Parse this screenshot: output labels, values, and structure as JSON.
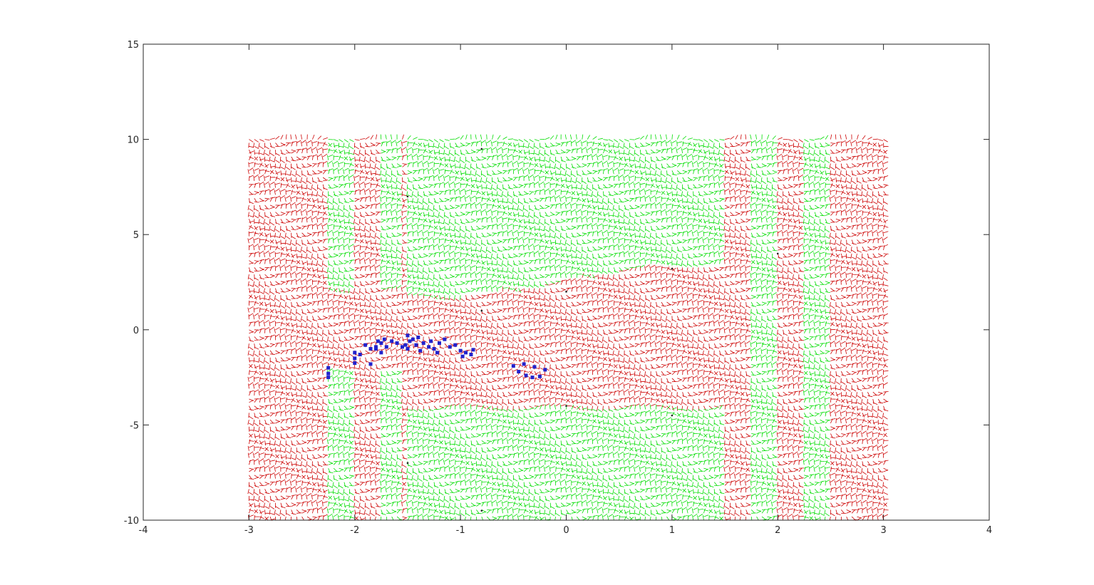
{
  "chart_data": {
    "type": "scatter",
    "title": "",
    "xlabel": "",
    "ylabel": "",
    "xlim": [
      -4,
      4
    ],
    "ylim": [
      -10,
      15
    ],
    "xticks": [
      "-4",
      "-3",
      "-2",
      "-1",
      "0",
      "1",
      "2",
      "3",
      "4"
    ],
    "yticks": [
      "-10",
      "-5",
      "0",
      "5",
      "10",
      "15"
    ],
    "grid": false,
    "legend": "none",
    "field": {
      "x_range": [
        -3,
        3
      ],
      "y_range": [
        -10,
        10
      ],
      "description_colors": {
        "class_a": "#cc0000",
        "class_b": "#00dd00"
      }
    },
    "boundary_points": [
      {
        "x": -1.5,
        "y": -7.0
      },
      {
        "x": -1.5,
        "y": 7.0
      },
      {
        "x": -0.8,
        "y": 9.5
      },
      {
        "x": -0.8,
        "y": -9.5
      },
      {
        "x": -0.8,
        "y": 1.0
      },
      {
        "x": 0.0,
        "y": 2.0
      },
      {
        "x": 1.0,
        "y": 3.2
      },
      {
        "x": 2.0,
        "y": 4.0
      },
      {
        "x": 0.0,
        "y": -4.0
      },
      {
        "x": 1.0,
        "y": -4.5
      }
    ],
    "series": [
      {
        "color": "#2222cc",
        "points": [
          [
            -2.25,
            -2.0
          ],
          [
            -2.25,
            -2.3
          ],
          [
            -2.25,
            -2.5
          ],
          [
            -2.0,
            -1.2
          ],
          [
            -2.0,
            -1.5
          ],
          [
            -2.0,
            -1.75
          ],
          [
            -1.95,
            -1.3
          ],
          [
            -1.9,
            -0.8
          ],
          [
            -1.85,
            -1.0
          ],
          [
            -1.85,
            -1.8
          ],
          [
            -1.8,
            -0.9
          ],
          [
            -1.8,
            -1.0
          ],
          [
            -1.78,
            -0.6
          ],
          [
            -1.75,
            -1.2
          ],
          [
            -1.75,
            -0.7
          ],
          [
            -1.72,
            -0.5
          ],
          [
            -1.7,
            -0.9
          ],
          [
            -1.65,
            -0.6
          ],
          [
            -1.6,
            -0.7
          ],
          [
            -1.55,
            -0.9
          ],
          [
            -1.52,
            -0.8
          ],
          [
            -1.5,
            -0.3
          ],
          [
            -1.5,
            -1.0
          ],
          [
            -1.48,
            -0.6
          ],
          [
            -1.45,
            -0.5
          ],
          [
            -1.42,
            -0.8
          ],
          [
            -1.4,
            -0.4
          ],
          [
            -1.38,
            -1.1
          ],
          [
            -1.35,
            -0.7
          ],
          [
            -1.3,
            -0.9
          ],
          [
            -1.28,
            -0.6
          ],
          [
            -1.25,
            -1.0
          ],
          [
            -1.22,
            -1.2
          ],
          [
            -1.2,
            -0.7
          ],
          [
            -1.15,
            -0.5
          ],
          [
            -1.1,
            -0.9
          ],
          [
            -1.05,
            -0.8
          ],
          [
            -1.0,
            -1.1
          ],
          [
            -0.98,
            -1.4
          ],
          [
            -0.95,
            -1.2
          ],
          [
            -0.9,
            -1.3
          ],
          [
            -0.88,
            -1.05
          ],
          [
            -0.5,
            -1.9
          ],
          [
            -0.45,
            -2.2
          ],
          [
            -0.4,
            -1.8
          ],
          [
            -0.38,
            -2.4
          ],
          [
            -0.32,
            -2.5
          ],
          [
            -0.3,
            -1.95
          ],
          [
            -0.25,
            -2.45
          ],
          [
            -0.2,
            -2.1
          ]
        ]
      }
    ]
  }
}
